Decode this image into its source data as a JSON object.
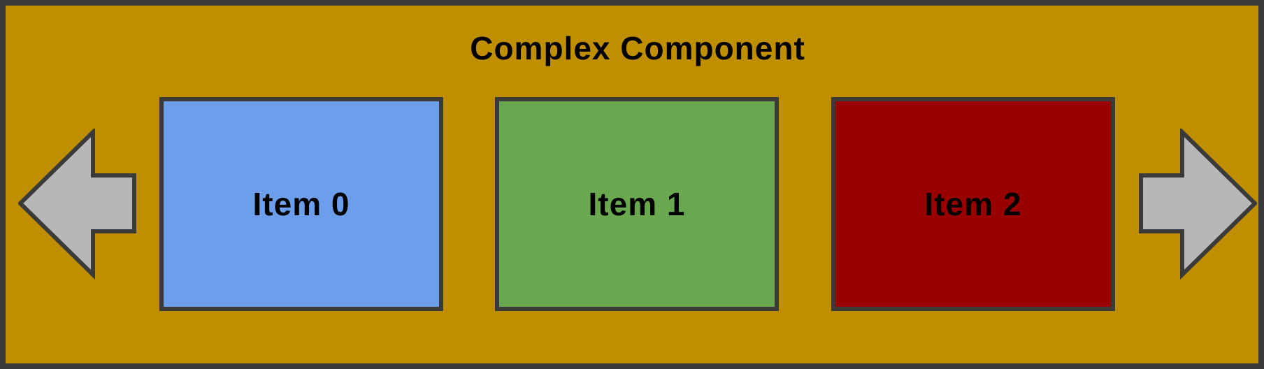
{
  "component": {
    "title": "Complex Component",
    "background_color": "#bf8f00",
    "border_color": "#3a3a3a"
  },
  "items": [
    {
      "label": "Item 0",
      "color": "#6d9eeb"
    },
    {
      "label": "Item 1",
      "color": "#6aa84f"
    },
    {
      "label": "Item 2",
      "color": "#990000"
    }
  ],
  "nav": {
    "prev_icon": "arrow-left-icon",
    "next_icon": "arrow-right-icon",
    "arrow_color": "#b7b7b7"
  }
}
